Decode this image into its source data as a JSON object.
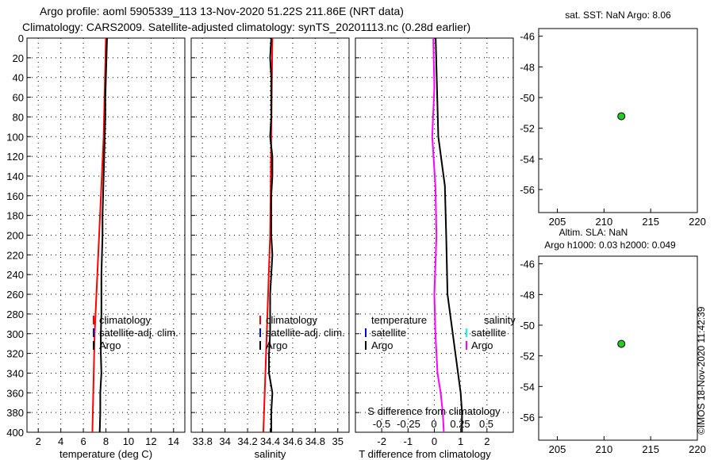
{
  "title_line1": "Argo profile: aoml 5905339_113 13-Nov-2020 51.22S 211.86E (NRT data)",
  "title_line2": "Climatology: CARS2009. Satellite-adjusted climatology: synTS_20201113.nc (0.28d earlier)",
  "watermark": "©IMOS 18-Nov-2020 11:42:39",
  "colors": {
    "climatology": "#ff0000",
    "satellite": "#0000ff",
    "argo": "#000000",
    "satellite_s": "#00ffff",
    "argo_s": "#ff00ff",
    "marker": "#22cc22"
  },
  "chart_data": [
    {
      "id": "temperature",
      "type": "line",
      "xlabel": "temperature (deg C)",
      "xlim": [
        1,
        15
      ],
      "xticks": [
        2,
        4,
        6,
        8,
        10,
        12,
        14
      ],
      "ylim": [
        400,
        0
      ],
      "yticks": [
        0,
        20,
        40,
        60,
        80,
        100,
        120,
        140,
        160,
        180,
        200,
        220,
        240,
        260,
        280,
        300,
        320,
        340,
        360,
        380,
        400
      ],
      "legend": [
        "climatology",
        "satellite-adj. clim.",
        "Argo"
      ],
      "series": [
        {
          "name": "climatology",
          "color": "#ff0000",
          "depth": [
            0,
            50,
            100,
            150,
            200,
            250,
            300,
            350,
            400
          ],
          "values": [
            8.0,
            7.9,
            7.8,
            7.6,
            7.4,
            7.2,
            7.0,
            6.9,
            6.8
          ]
        },
        {
          "name": "Argo",
          "color": "#000000",
          "depth": [
            0,
            20,
            40,
            60,
            80,
            100,
            120,
            140,
            160,
            180,
            200,
            220,
            240,
            260,
            280,
            300,
            320,
            340,
            360,
            380,
            400
          ],
          "values": [
            8.1,
            8.05,
            8.0,
            7.95,
            7.95,
            7.9,
            7.85,
            7.8,
            7.75,
            7.7,
            7.7,
            7.65,
            7.6,
            7.6,
            7.6,
            7.55,
            7.55,
            7.6,
            7.5,
            7.5,
            7.45
          ]
        }
      ]
    },
    {
      "id": "salinity",
      "type": "line",
      "xlabel": "salinity",
      "xlim": [
        33.7,
        35.1
      ],
      "xticks": [
        33.8,
        34,
        34.2,
        34.4,
        34.6,
        34.8,
        35
      ],
      "xticklabels": [
        "33.8",
        "34",
        "34.2",
        "34.4",
        "34.6",
        "34.8",
        "35"
      ],
      "ylim": [
        400,
        0
      ],
      "legend": [
        "climatology",
        "satellite-adj. clim.",
        "Argo"
      ],
      "series": [
        {
          "name": "climatology",
          "color": "#ff0000",
          "depth": [
            0,
            100,
            200,
            300,
            400
          ],
          "values": [
            34.42,
            34.41,
            34.4,
            34.37,
            34.34
          ]
        },
        {
          "name": "Argo",
          "color": "#000000",
          "depth": [
            0,
            20,
            40,
            60,
            80,
            100,
            120,
            140,
            160,
            180,
            200,
            220,
            240,
            260,
            280,
            300,
            320,
            340,
            360,
            380,
            400
          ],
          "values": [
            34.41,
            34.4,
            34.41,
            34.41,
            34.41,
            34.4,
            34.42,
            34.42,
            34.41,
            34.41,
            34.41,
            34.42,
            34.41,
            34.4,
            34.4,
            34.4,
            34.39,
            34.39,
            34.42,
            34.41,
            34.41
          ]
        }
      ]
    },
    {
      "id": "differences",
      "type": "line",
      "xlabel": "T difference from climatology",
      "xlim": [
        -3,
        3
      ],
      "xticks": [
        -2,
        -1,
        0,
        1,
        2
      ],
      "xticklabels": [
        "-2",
        "-1",
        "0",
        "1",
        "2"
      ],
      "top_axis_label": "S difference from climatology",
      "top_xticklabels": [
        "-0.5",
        "-0.25",
        "0",
        "0.25",
        "0.5"
      ],
      "ylim": [
        400,
        0
      ],
      "legend_left_title": "temperature",
      "legend_right_title": "salinity",
      "legend_left": [
        "satellite",
        "Argo"
      ],
      "legend_right": [
        "satellite",
        "Argo"
      ],
      "series": [
        {
          "name": "T diff Argo",
          "color": "#000000",
          "depth": [
            0,
            50,
            100,
            150,
            200,
            260,
            300,
            320,
            340,
            360,
            380,
            400
          ],
          "values": [
            0.05,
            0.1,
            0.15,
            0.4,
            0.45,
            0.5,
            0.7,
            0.8,
            0.9,
            1.0,
            1.05,
            1.05
          ]
        },
        {
          "name": "S diff Argo",
          "color": "#ff00ff",
          "depth": [
            0,
            50,
            100,
            150,
            200,
            260,
            300,
            320,
            340,
            360,
            380,
            400
          ],
          "values": [
            -0.01,
            0.0,
            -0.02,
            0.01,
            0.02,
            0.0,
            0.01,
            0.02,
            0.03,
            0.06,
            0.08,
            0.09
          ]
        }
      ]
    },
    {
      "id": "map_sst",
      "type": "scatter",
      "title": "sat. SST: NaN Argo: 8.06",
      "xlim": [
        203,
        220
      ],
      "ylim": [
        -57.5,
        -45.5
      ],
      "xticks": [
        205,
        210,
        215,
        220
      ],
      "yticks": [
        -46,
        -48,
        -50,
        -52,
        -54,
        -56
      ],
      "x": [
        211.86
      ],
      "y": [
        -51.22
      ]
    },
    {
      "id": "map_sla",
      "type": "scatter",
      "title": "Altim. SLA: NaN",
      "subtitle": "Argo h1000: 0.03 h2000: 0.049",
      "xlim": [
        203,
        220
      ],
      "ylim": [
        -57.5,
        -45.5
      ],
      "xticks": [
        205,
        210,
        215,
        220
      ],
      "yticks": [
        -46,
        -48,
        -50,
        -52,
        -54,
        -56
      ],
      "x": [
        211.86
      ],
      "y": [
        -51.22
      ]
    }
  ]
}
